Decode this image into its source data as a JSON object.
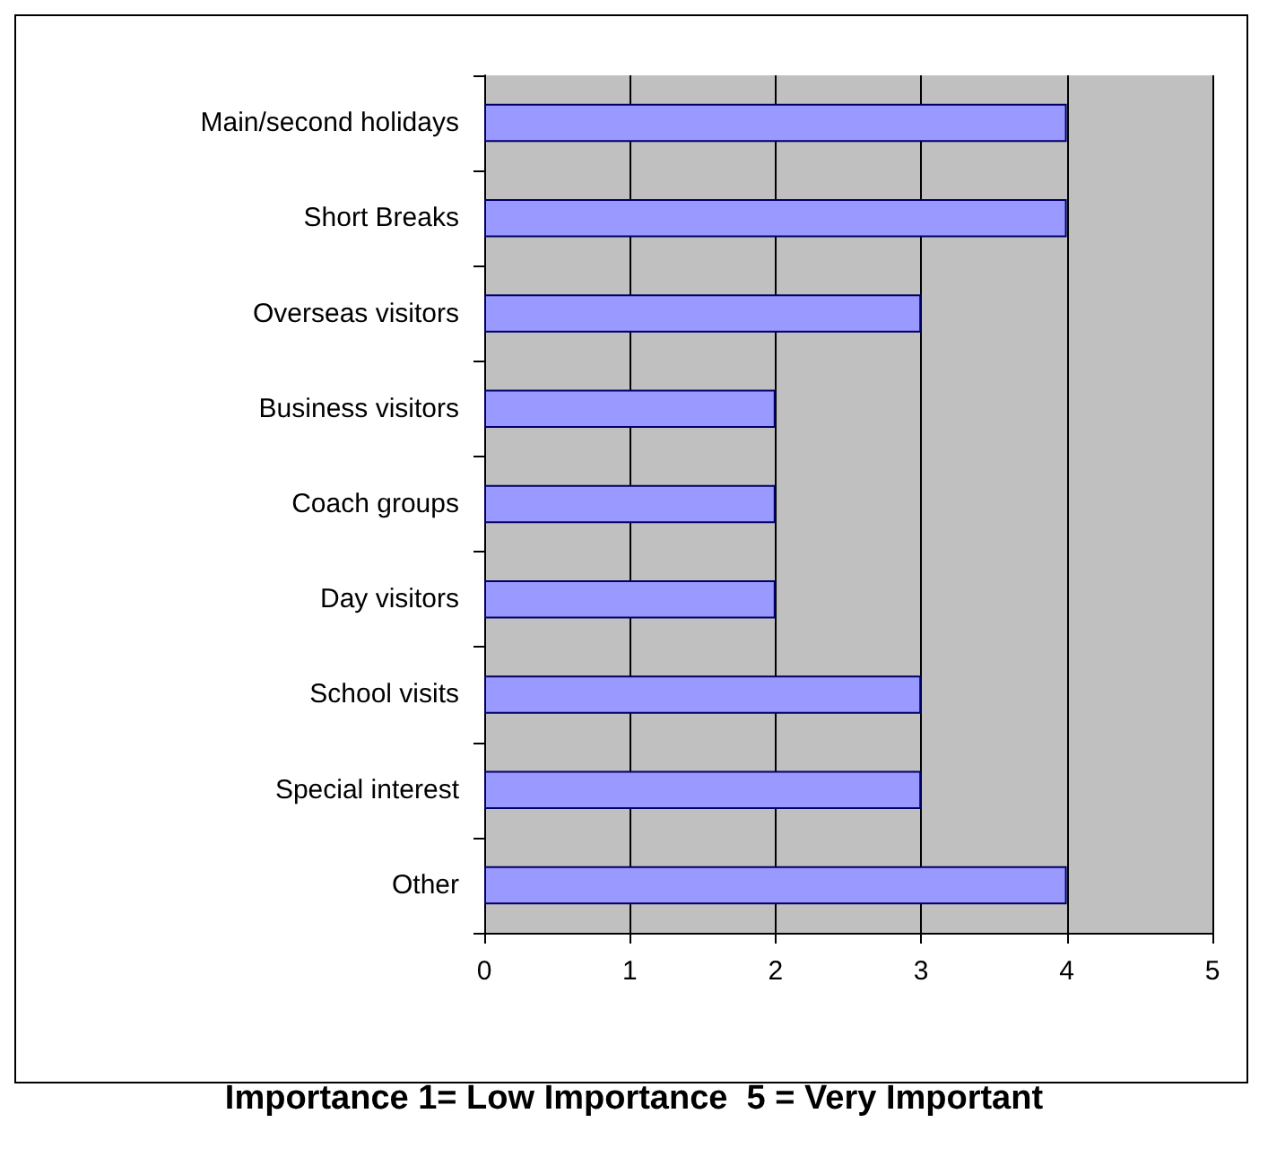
{
  "chart_data": {
    "type": "bar",
    "orientation": "horizontal",
    "xlabel": "Importance 1= Low Importance  5 = Very Important",
    "categories": [
      "Main/second holidays",
      "Short Breaks",
      "Overseas visitors",
      "Business visitors",
      "Coach groups",
      "Day visitors",
      "School visits",
      "Special interest",
      "Other"
    ],
    "values": [
      4,
      4,
      3,
      2,
      2,
      2,
      3,
      3,
      4
    ],
    "color": "#9999ff",
    "xlim": [
      0,
      5
    ],
    "xticks": [
      0,
      1,
      2,
      3,
      4,
      5
    ],
    "grid": "x"
  }
}
